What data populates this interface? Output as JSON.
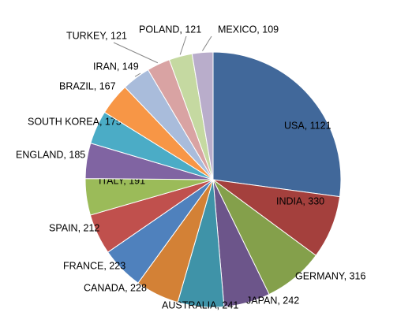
{
  "chart_data": {
    "type": "pie",
    "values": [
      1121,
      330,
      316,
      242,
      241,
      228,
      223,
      212,
      191,
      185,
      175,
      167,
      149,
      121,
      121,
      109
    ],
    "value_labels": [
      "USA, 1121",
      "INDIA, 330",
      "GERMANY, 316",
      "JAPAN, 242",
      "AUSTRALIA, 241",
      "CANADA, 228",
      "FRANCE, 223",
      "SPAIN, 212",
      "ITALY, 191",
      "ENGLAND, 185",
      "SOUTH KOREA, 175",
      "BRAZIL, 167",
      "IRAN, 149",
      "TURKEY, 121",
      "POLAND, 121",
      "MEXICO, 109"
    ],
    "colors": [
      "#41689a",
      "#a4403d",
      "#84a04b",
      "#6c558a",
      "#3f93a8",
      "#d38136",
      "#4f81bd",
      "#c0504d",
      "#9bbb59",
      "#8064a2",
      "#4bacc6",
      "#f79646",
      "#a9bcdb",
      "#d9a3a3",
      "#c5d9a1",
      "#b9adcb"
    ]
  }
}
